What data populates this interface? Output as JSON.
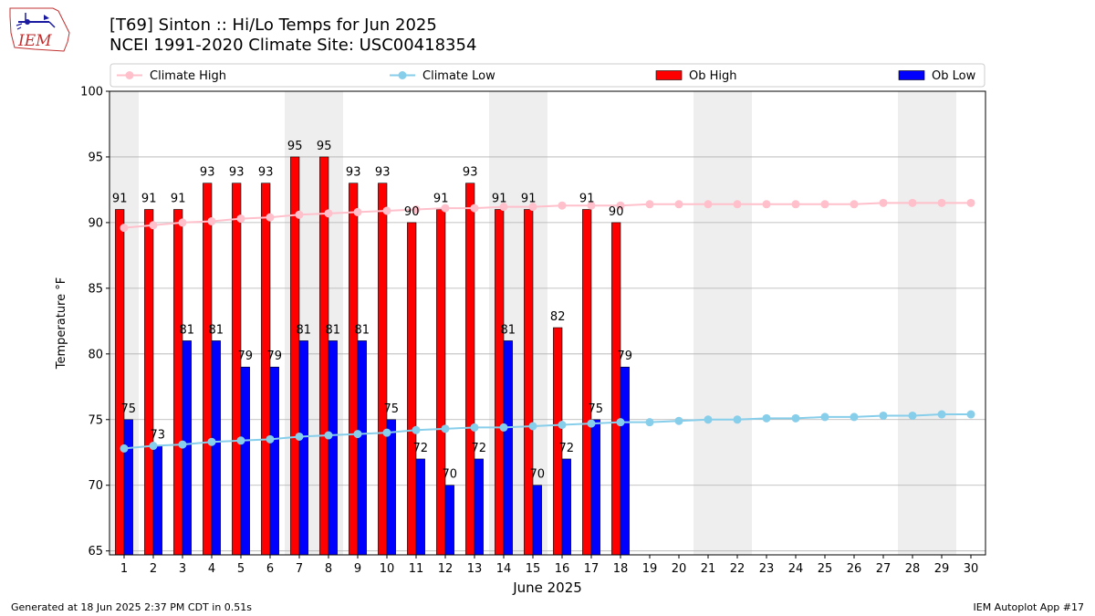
{
  "logo": {
    "text": "IEM"
  },
  "header": {
    "title_line1": "[T69] Sinton :: Hi/Lo Temps for Jun 2025",
    "title_line2": "NCEI 1991-2020 Climate Site: USC00418354"
  },
  "footer": {
    "generated": "Generated at 18 Jun 2025 2:37 PM CDT in 0.51s",
    "app": "IEM Autoplot App #17"
  },
  "colors": {
    "climate_high": "#ffc0cb",
    "climate_low": "#87ceeb",
    "ob_high": "#ff0000",
    "ob_low": "#0000ff",
    "weekend_shade": "#eeeeee",
    "grid": "#b0b0b0"
  },
  "chart_data": {
    "type": "bar",
    "xlabel": "June 2025",
    "ylabel": "Temperature °F",
    "ylim": [
      65,
      100
    ],
    "yticks": [
      65,
      70,
      75,
      80,
      85,
      90,
      95,
      100
    ],
    "grid": "horizontal",
    "legend_position": "top",
    "weekend_days": [
      1,
      7,
      8,
      14,
      15,
      21,
      22,
      28,
      29
    ],
    "days": [
      1,
      2,
      3,
      4,
      5,
      6,
      7,
      8,
      9,
      10,
      11,
      12,
      13,
      14,
      15,
      16,
      17,
      18,
      19,
      20,
      21,
      22,
      23,
      24,
      25,
      26,
      27,
      28,
      29,
      30
    ],
    "ob_high": [
      91,
      91,
      91,
      93,
      93,
      93,
      95,
      95,
      93,
      93,
      90,
      91,
      93,
      91,
      91,
      82,
      91,
      90
    ],
    "ob_low": [
      75,
      73,
      81,
      81,
      79,
      79,
      81,
      81,
      81,
      75,
      72,
      70,
      72,
      81,
      70,
      72,
      75,
      79
    ],
    "climate_high": [
      89.6,
      89.8,
      90.0,
      90.1,
      90.3,
      90.4,
      90.6,
      90.7,
      90.8,
      90.9,
      91.0,
      91.1,
      91.1,
      91.2,
      91.2,
      91.3,
      91.3,
      91.3,
      91.4,
      91.4,
      91.4,
      91.4,
      91.4,
      91.4,
      91.4,
      91.4,
      91.5,
      91.5,
      91.5,
      91.5
    ],
    "climate_low": [
      72.8,
      73.0,
      73.1,
      73.3,
      73.4,
      73.5,
      73.7,
      73.8,
      73.9,
      74.0,
      74.2,
      74.3,
      74.4,
      74.4,
      74.5,
      74.6,
      74.7,
      74.8,
      74.8,
      74.9,
      75.0,
      75.0,
      75.1,
      75.1,
      75.2,
      75.2,
      75.3,
      75.3,
      75.4,
      75.4
    ],
    "legend": [
      {
        "key": "climate_high",
        "label": "Climate High",
        "kind": "line"
      },
      {
        "key": "climate_low",
        "label": "Climate Low",
        "kind": "line"
      },
      {
        "key": "ob_high",
        "label": "Ob High",
        "kind": "bar"
      },
      {
        "key": "ob_low",
        "label": "Ob Low",
        "kind": "bar"
      }
    ]
  }
}
